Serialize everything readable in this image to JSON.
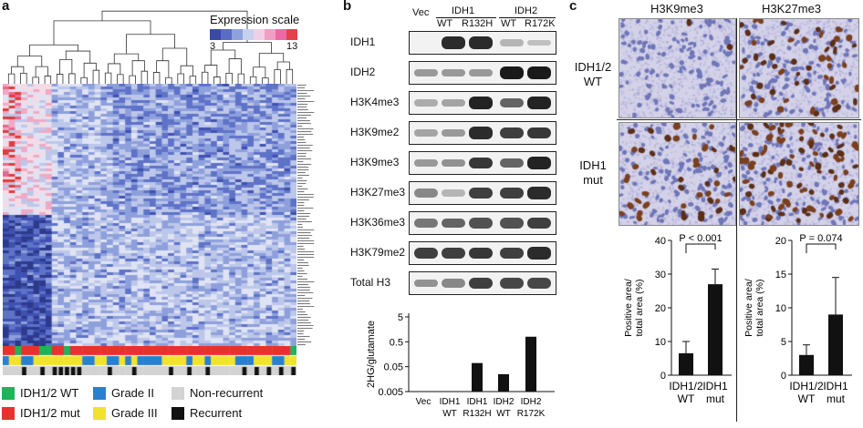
{
  "panel_a": {
    "label": "a",
    "expression_scale": {
      "title": "Expression scale",
      "min": "3",
      "max": "13",
      "colors": [
        "#3b4aa8",
        "#5a6cc4",
        "#8fa2e0",
        "#c7d0f0",
        "#f0d0e6",
        "#f19ec5",
        "#ec6aa4",
        "#e5414b"
      ]
    },
    "legend": [
      {
        "label": "IDH1/2 WT",
        "color": "#1fb35a"
      },
      {
        "label": "Grade II",
        "color": "#2a7fd0"
      },
      {
        "label": "Non-recurrent",
        "color": "#d3d3d3"
      },
      {
        "label": "IDH1/2 mut",
        "color": "#e8312f"
      },
      {
        "label": "Grade III",
        "color": "#f2e230"
      },
      {
        "label": "Recurrent",
        "color": "#111111"
      }
    ]
  },
  "panel_b": {
    "label": "b",
    "header": {
      "vec": "Vec",
      "idh1": "IDH1",
      "idh2": "IDH2",
      "lanes": [
        "WT",
        "R132H",
        "WT",
        "R172K"
      ]
    },
    "blots": [
      {
        "name": "IDH1",
        "bands": [
          0,
          0.9,
          0.9,
          0.15,
          0.1
        ]
      },
      {
        "name": "IDH2",
        "bands": [
          0.3,
          0.3,
          0.3,
          1.0,
          1.0
        ]
      },
      {
        "name": "H3K4me3",
        "bands": [
          0.2,
          0.25,
          0.95,
          0.6,
          0.95
        ]
      },
      {
        "name": "H3K9me2",
        "bands": [
          0.25,
          0.3,
          0.9,
          0.8,
          0.85
        ]
      },
      {
        "name": "H3K9me3",
        "bands": [
          0.3,
          0.35,
          0.85,
          0.6,
          0.95
        ]
      },
      {
        "name": "H3K27me3",
        "bands": [
          0.4,
          0.15,
          0.8,
          0.8,
          0.9
        ]
      },
      {
        "name": "H3K36me3",
        "bands": [
          0.5,
          0.6,
          0.7,
          0.7,
          0.8
        ]
      },
      {
        "name": "H3K79me2",
        "bands": [
          0.8,
          0.8,
          0.85,
          0.8,
          0.9
        ]
      },
      {
        "name": "Total H3",
        "bands": [
          0.35,
          0.4,
          0.8,
          0.75,
          0.75
        ]
      }
    ],
    "bar_chart": {
      "ylabel": "2HG/glutamate",
      "yticks": [
        "5",
        "0.5",
        "0.05",
        "0.005"
      ],
      "categories": [
        [
          "Vec",
          ""
        ],
        [
          "IDH1",
          "WT"
        ],
        [
          "IDH1",
          "R132H"
        ],
        [
          "IDH2",
          "WT"
        ],
        [
          "IDH2",
          "R172K"
        ]
      ],
      "values": [
        0,
        0,
        0.07,
        0.025,
        0.8
      ]
    }
  },
  "panel_c": {
    "label": "c",
    "col_headers": [
      "H3K9me3",
      "H3K27me3"
    ],
    "row_labels": [
      [
        "IDH1/2",
        "WT"
      ],
      [
        "IDH1",
        "mut"
      ]
    ],
    "charts": [
      {
        "ylabel": [
          "Positive area/",
          "total area (%)"
        ],
        "yticks": [
          "40",
          "30",
          "20",
          "10",
          "0"
        ],
        "ymax": 40,
        "pvalue": "P < 0.001",
        "categories": [
          [
            "IDH1/2",
            "WT"
          ],
          [
            "IDH1",
            "mut"
          ]
        ],
        "values": [
          6.5,
          27
        ],
        "errors": [
          3.5,
          4.5
        ]
      },
      {
        "ylabel": [
          "Positive area/",
          "total area (%)"
        ],
        "yticks": [
          "20",
          "15",
          "10",
          "5",
          "0"
        ],
        "ymax": 20,
        "pvalue": "P = 0.074",
        "categories": [
          [
            "IDH1/2",
            "WT"
          ],
          [
            "IDH1",
            "mut"
          ]
        ],
        "values": [
          3,
          9
        ],
        "errors": [
          1.5,
          5.5
        ]
      }
    ]
  },
  "chart_data": [
    {
      "type": "bar",
      "ylabel": "2HG/glutamate",
      "yscale": "log",
      "ylim": [
        0.005,
        5
      ],
      "categories": [
        "Vec",
        "IDH1 WT",
        "IDH1 R132H",
        "IDH2 WT",
        "IDH2 R172K"
      ],
      "values": [
        0,
        0,
        0.07,
        0.025,
        0.8
      ]
    },
    {
      "type": "bar",
      "ylabel": "Positive area/ total area (%)",
      "ylim": [
        0,
        40
      ],
      "categories": [
        "IDH1/2 WT",
        "IDH1 mut"
      ],
      "values": [
        6.5,
        27
      ],
      "annotation": "P < 0.001"
    },
    {
      "type": "bar",
      "ylabel": "Positive area/ total area (%)",
      "ylim": [
        0,
        20
      ],
      "categories": [
        "IDH1/2 WT",
        "IDH1 mut"
      ],
      "values": [
        3,
        9
      ],
      "annotation": "P = 0.074"
    }
  ]
}
